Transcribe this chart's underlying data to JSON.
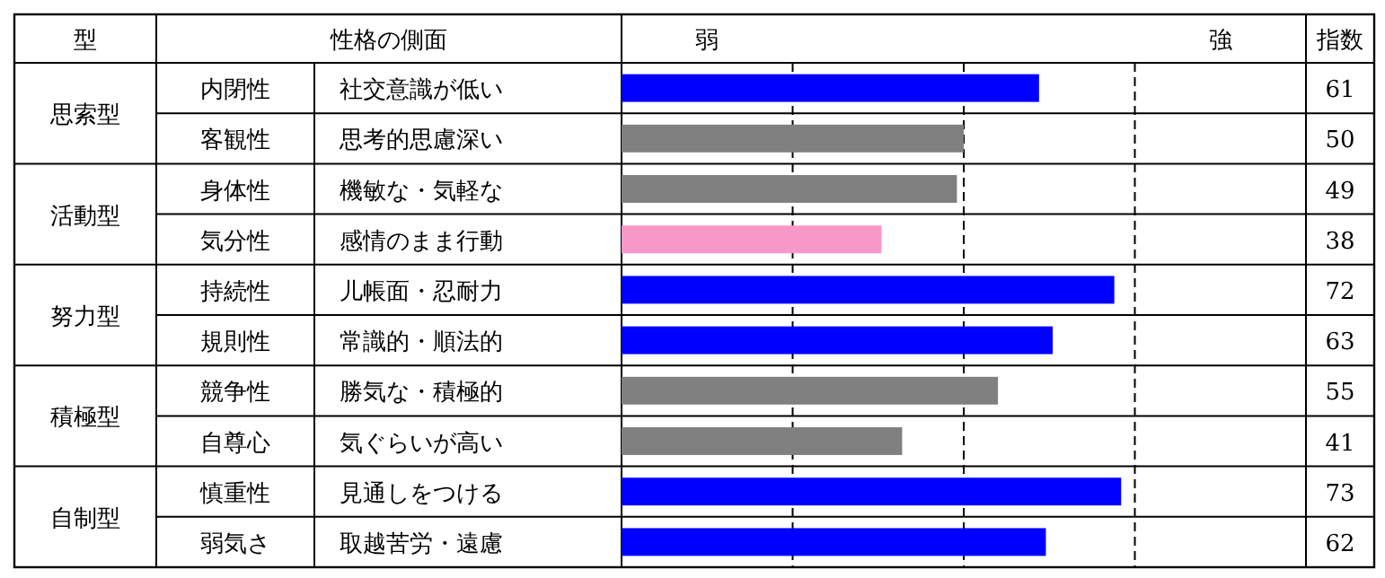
{
  "chart_data": {
    "type": "bar",
    "orientation": "horizontal",
    "categories": [
      "内閉性",
      "客観性",
      "身体性",
      "気分性",
      "持続性",
      "規則性",
      "競争性",
      "自尊心",
      "慎重性",
      "弱気さ"
    ],
    "values": [
      61,
      50,
      49,
      38,
      72,
      63,
      55,
      41,
      73,
      62
    ],
    "colors": [
      "#0000ff",
      "#808080",
      "#808080",
      "#f799c8",
      "#0000ff",
      "#0000ff",
      "#808080",
      "#808080",
      "#0000ff",
      "#0000ff"
    ],
    "xlim": [
      0,
      100
    ],
    "data_labels": true,
    "ref_lines": [
      {
        "axis": "x",
        "value": 25,
        "color": "#000000",
        "line_style": "dashed"
      },
      {
        "axis": "x",
        "value": 50,
        "color": "#000000",
        "line_style": "dashed"
      },
      {
        "axis": "x",
        "value": 75,
        "color": "#000000",
        "line_style": "dashed"
      }
    ],
    "annotations": [
      "型",
      "性格の側面",
      "弱",
      "強",
      "指数",
      "思索型",
      "活動型",
      "努力型",
      "積極型",
      "自制型",
      "社交意識が低い",
      "思考的思慮深い",
      "機敏な・気軽な",
      "感情のまま行動",
      "儿帳面・忍耐力",
      "常識的・順法的",
      "勝気な・積極的",
      "気ぐらいが高い",
      "見通しをつける",
      "取越苦労・遠慮"
    ]
  }
}
